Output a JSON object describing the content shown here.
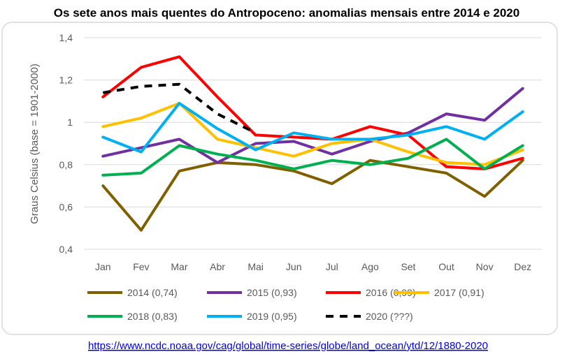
{
  "chart_data": {
    "type": "line",
    "title": "Os sete anos mais quentes do Antropoceno: anomalias mensais entre 2014 e 2020",
    "ylabel": "Graus Celsius (base = 1901-2000)",
    "xlabel": "",
    "ylim": [
      0.4,
      1.4
    ],
    "yticks": [
      0.4,
      0.6,
      0.8,
      1.0,
      1.2,
      1.4
    ],
    "ytick_labels": [
      "0,4",
      "0,6",
      "0,8",
      "1",
      "1,2",
      "1,4"
    ],
    "categories": [
      "Jan",
      "Fev",
      "Mar",
      "Abr",
      "Mai",
      "Jun",
      "Jul",
      "Ago",
      "Set",
      "Out",
      "Nov",
      "Dez"
    ],
    "grid": true,
    "legend_position": "bottom",
    "series": [
      {
        "name": "2014 (0,74)",
        "color": "#7f6000",
        "dashed": false,
        "values": [
          0.7,
          0.49,
          0.77,
          0.81,
          0.8,
          0.77,
          0.71,
          0.82,
          0.79,
          0.76,
          0.65,
          0.82
        ]
      },
      {
        "name": "2015 (0,93)",
        "color": "#7030a0",
        "dashed": false,
        "values": [
          0.84,
          0.88,
          0.92,
          0.81,
          0.9,
          0.91,
          0.85,
          0.91,
          0.95,
          1.04,
          1.01,
          1.16
        ]
      },
      {
        "name": "2016 (0,99)",
        "color": "#ff0000",
        "dashed": false,
        "values": [
          1.12,
          1.26,
          1.31,
          1.12,
          0.94,
          0.93,
          0.92,
          0.98,
          0.94,
          0.79,
          0.78,
          0.83
        ]
      },
      {
        "name": "2017 (0,91)",
        "color": "#ffc000",
        "dashed": false,
        "values": [
          0.98,
          1.02,
          1.09,
          0.92,
          0.88,
          0.84,
          0.9,
          0.92,
          0.86,
          0.81,
          0.8,
          0.87
        ]
      },
      {
        "name": "2018 (0,83)",
        "color": "#00b050",
        "dashed": false,
        "values": [
          0.75,
          0.76,
          0.89,
          0.85,
          0.82,
          0.78,
          0.82,
          0.8,
          0.83,
          0.92,
          0.78,
          0.89
        ]
      },
      {
        "name": "2019 (0,95)",
        "color": "#00b0f0",
        "dashed": false,
        "values": [
          0.93,
          0.86,
          1.09,
          0.97,
          0.87,
          0.95,
          0.92,
          0.92,
          0.94,
          0.98,
          0.92,
          1.05
        ]
      },
      {
        "name": "2020 (???)",
        "color": "#000000",
        "dashed": true,
        "values": [
          1.14,
          1.17,
          1.18,
          1.04,
          0.95,
          null,
          null,
          null,
          null,
          null,
          null,
          null
        ]
      }
    ]
  },
  "source": {
    "url_text": "https://www.ncdc.noaa.gov/cag/global/time-series/globe/land_ocean/ytd/12/1880-2020"
  }
}
